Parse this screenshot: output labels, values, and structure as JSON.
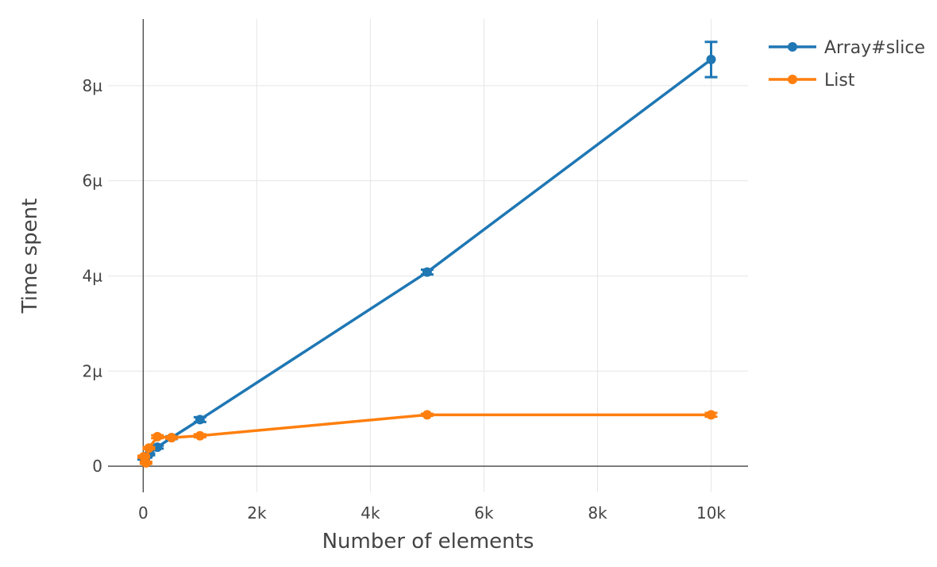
{
  "chart_data": {
    "type": "line",
    "title": "",
    "xlabel": "Number of elements",
    "ylabel": "Time spent",
    "xlim": [
      -620,
      10650
    ],
    "ylim": [
      -0.55,
      9.4
    ],
    "x_ticks": [
      0,
      2000,
      4000,
      6000,
      8000,
      10000
    ],
    "x_tick_labels": [
      "0",
      "2k",
      "4k",
      "6k",
      "8k",
      "10k"
    ],
    "y_ticks": [
      0,
      2,
      4,
      6,
      8
    ],
    "y_tick_labels": [
      "0",
      "2µ",
      "4µ",
      "6µ",
      "8µ"
    ],
    "y_unit": "µs",
    "grid": true,
    "legend_position": "top-right",
    "series": [
      {
        "name": "Array#slice",
        "color": "#1f77b4",
        "x": [
          10,
          50,
          100,
          250,
          500,
          1000,
          5000,
          10000
        ],
        "y": [
          0.16,
          0.2,
          0.25,
          0.4,
          0.6,
          0.98,
          4.08,
          8.55
        ],
        "error": [
          0.02,
          0.02,
          0.02,
          0.03,
          0.03,
          0.05,
          0.05,
          0.37
        ]
      },
      {
        "name": "List",
        "color": "#ff7f0e",
        "x": [
          10,
          50,
          100,
          250,
          500,
          1000,
          5000,
          10000
        ],
        "y": [
          0.2,
          0.07,
          0.38,
          0.62,
          0.6,
          0.64,
          1.08,
          1.08
        ],
        "error": [
          0.02,
          0.02,
          0.02,
          0.03,
          0.02,
          0.03,
          0.02,
          0.04
        ]
      }
    ]
  }
}
